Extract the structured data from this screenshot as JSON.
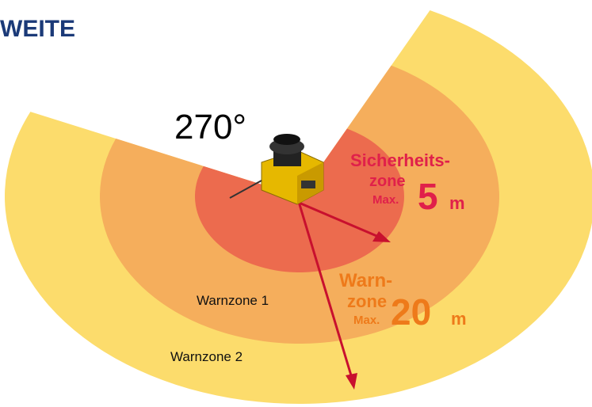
{
  "title": "WEITE",
  "angle": "270°",
  "safety_zone": {
    "line1": "Sicherheits-",
    "line2": "zone",
    "max": "Max.",
    "value": "5",
    "unit": "m"
  },
  "warning_zone": {
    "line1": "Warn-",
    "line2": "zone",
    "max": "Max.",
    "value": "20",
    "unit": "m"
  },
  "zone_labels": [
    "Warnzone 1",
    "Warnzone 2"
  ]
}
